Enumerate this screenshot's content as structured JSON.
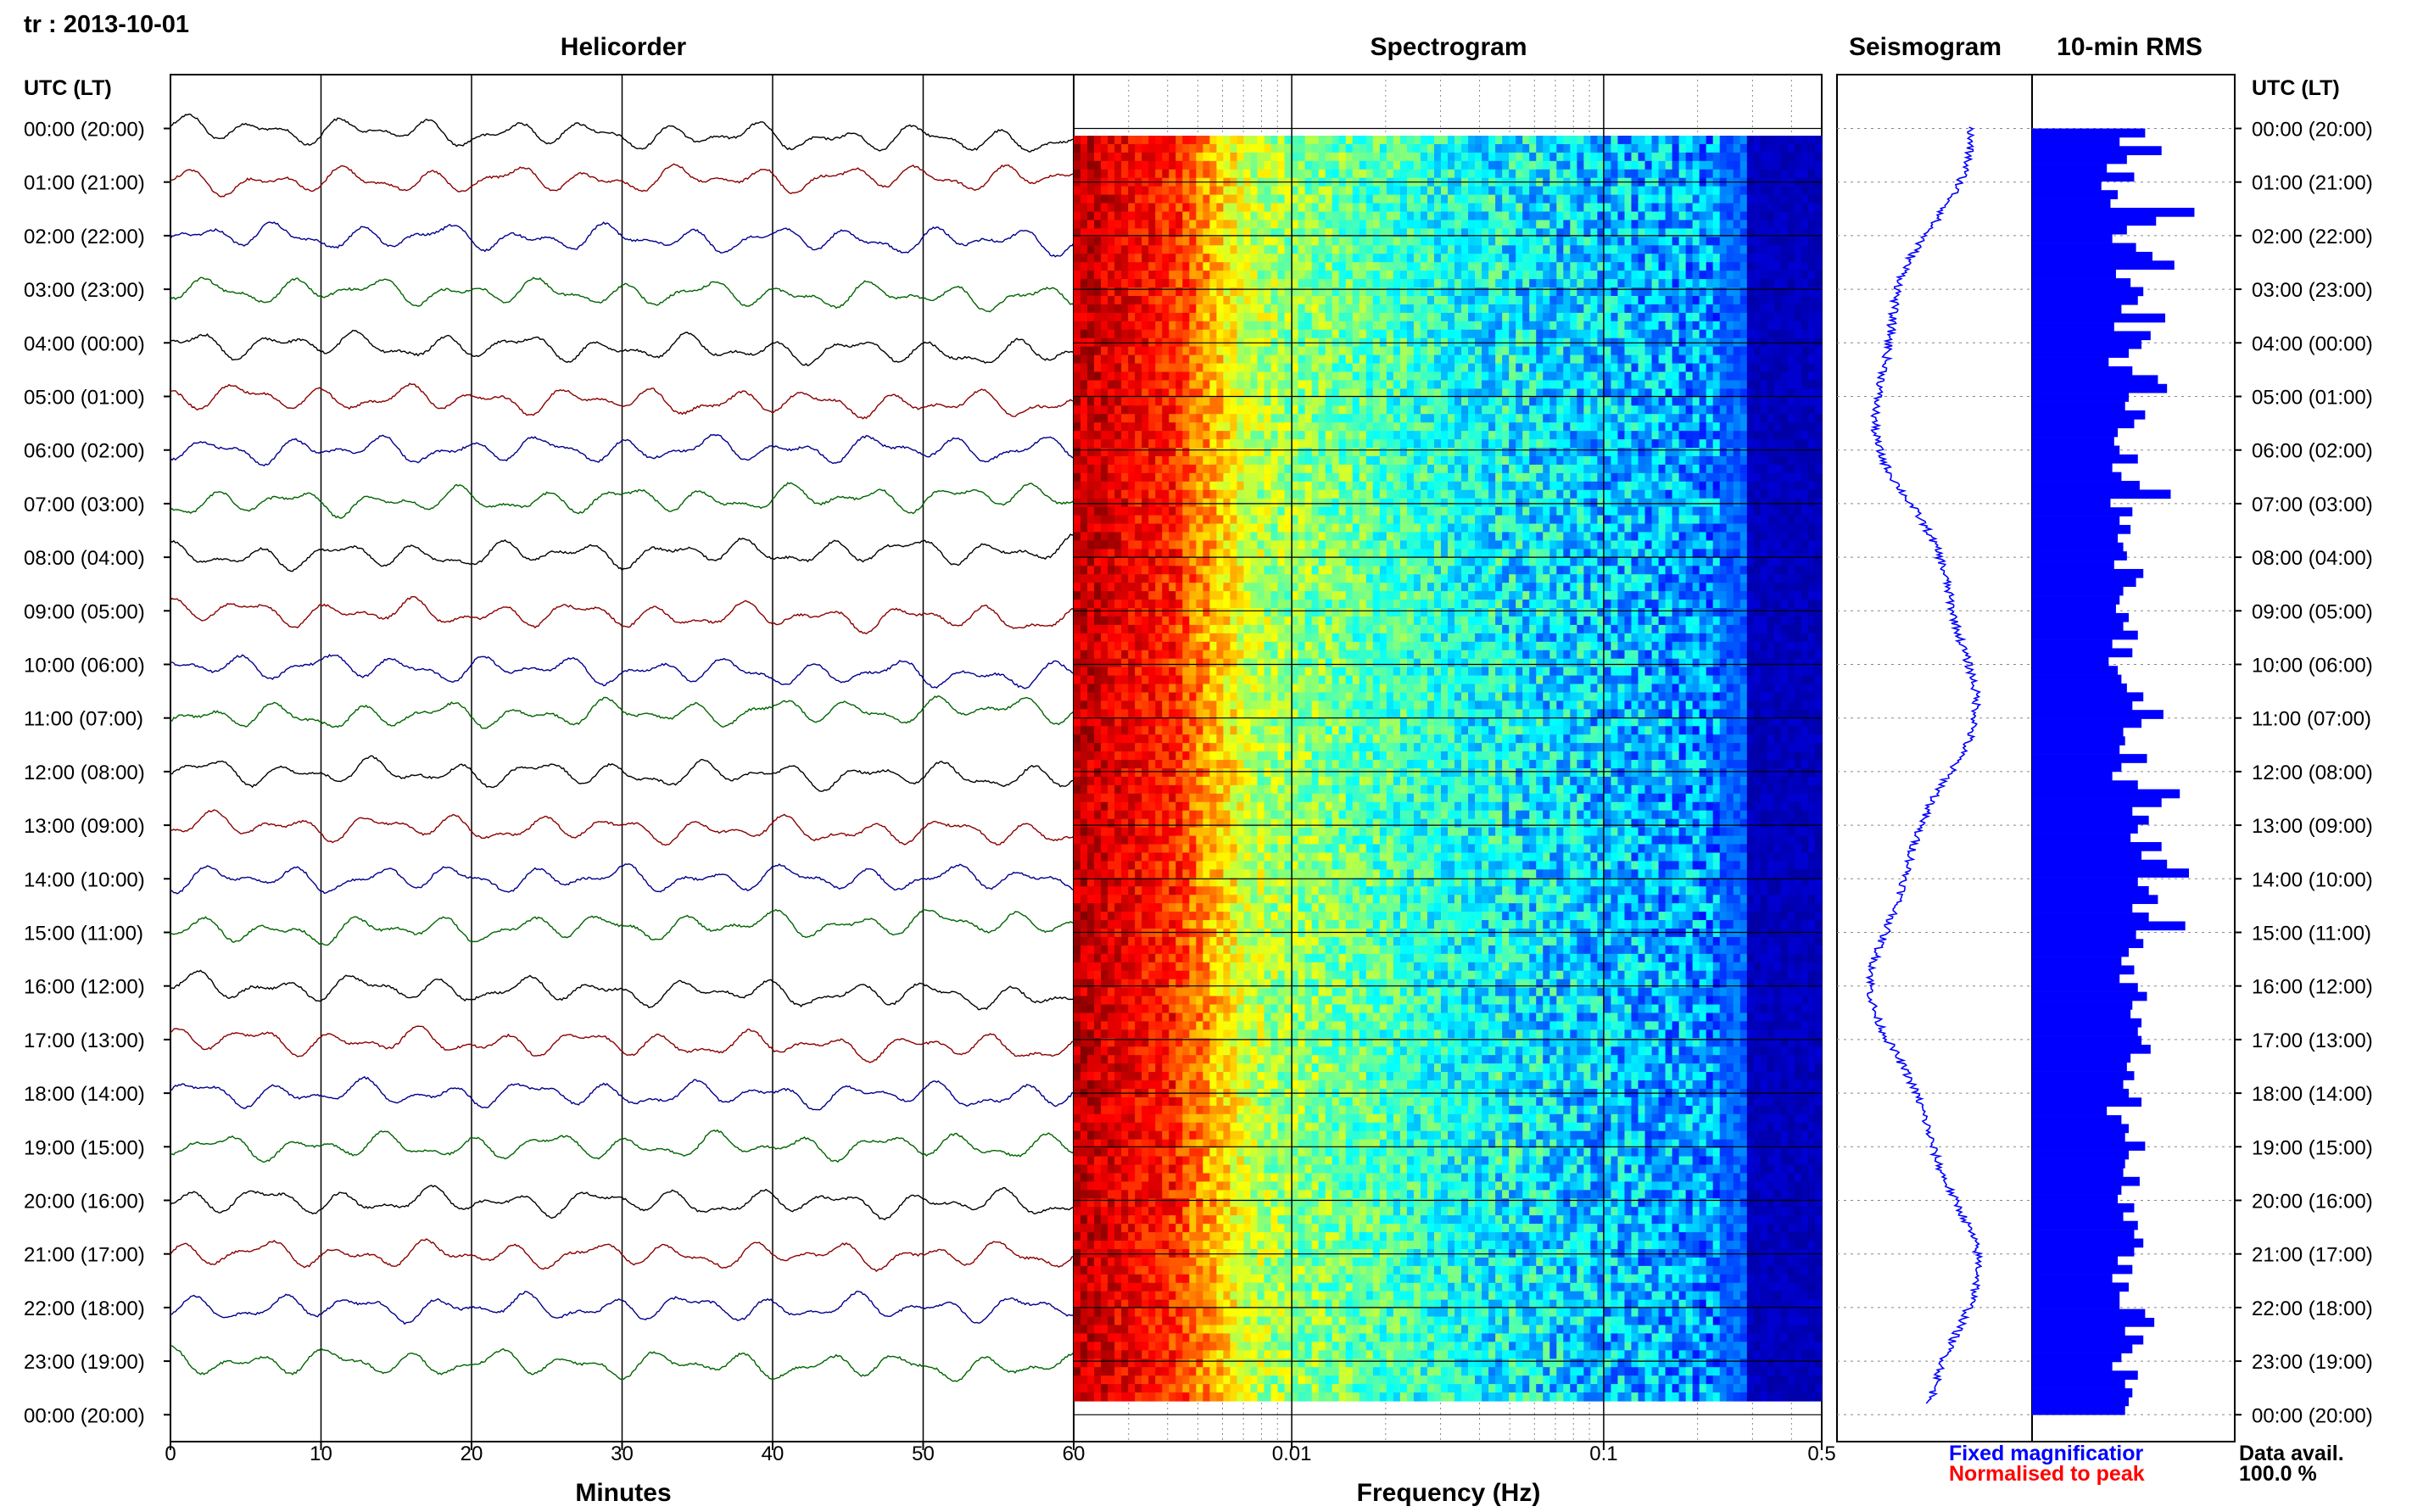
{
  "header": {
    "station_date": "tr : 2013-10-01",
    "time_axis_label_left": "UTC (LT)",
    "time_axis_label_right": "UTC (LT)"
  },
  "panels": {
    "helicorder": {
      "title": "Helicorder",
      "xlabel": "Minutes"
    },
    "spectrogram": {
      "title": "Spectrogram",
      "xlabel": "Frequency (Hz)"
    },
    "seismogram": {
      "title": "Seismogram"
    },
    "rms": {
      "title": "10-min RMS"
    }
  },
  "legend": {
    "fixed": "Fixed magnificatior",
    "normalised": "Normalised to peak",
    "fixed_color": "#0000ff",
    "normalised_color": "#ff0000"
  },
  "data_avail": {
    "label": "Data avail.",
    "value": "100.0 %"
  },
  "chart_data": [
    {
      "type": "line",
      "panel": "helicorder",
      "xlabel": "Minutes",
      "xlim": [
        0,
        60
      ],
      "x_ticks": [
        "0",
        "10",
        "20",
        "30",
        "40",
        "50",
        "60"
      ],
      "row_labels": [
        "00:00 (20:00)",
        "01:00 (21:00)",
        "02:00 (22:00)",
        "03:00 (23:00)",
        "04:00 (00:00)",
        "05:00 (01:00)",
        "06:00 (02:00)",
        "07:00 (03:00)",
        "08:00 (04:00)",
        "09:00 (05:00)",
        "10:00 (06:00)",
        "11:00 (07:00)",
        "12:00 (08:00)",
        "13:00 (09:00)",
        "14:00 (10:00)",
        "15:00 (11:00)",
        "16:00 (12:00)",
        "17:00 (13:00)",
        "18:00 (14:00)",
        "19:00 (15:00)",
        "20:00 (16:00)",
        "21:00 (17:00)",
        "22:00 (18:00)",
        "23:00 (19:00)",
        "00:00 (20:00)"
      ],
      "trace_colors": [
        "#000000",
        "#8b0000",
        "#00008b",
        "#006400"
      ]
    },
    {
      "type": "heatmap",
      "panel": "spectrogram",
      "xlabel": "Frequency (Hz)",
      "x_scale": "log",
      "xlim": [
        0.002,
        0.5
      ],
      "x_ticks": [
        "0.01",
        "0.1",
        "0.5"
      ],
      "colormap": "jet"
    },
    {
      "type": "line",
      "panel": "seismogram",
      "color": "#0000ff"
    },
    {
      "type": "bar",
      "panel": "10-min RMS",
      "orientation": "horizontal",
      "color": "#0000ff",
      "values": [
        0.62,
        0.48,
        0.71,
        0.52,
        0.41,
        0.56,
        0.38,
        0.47,
        0.43,
        0.89,
        0.68,
        0.52,
        0.44,
        0.57,
        0.66,
        0.78,
        0.46,
        0.54,
        0.61,
        0.58,
        0.49,
        0.73,
        0.45,
        0.65,
        0.6,
        0.53,
        0.42,
        0.55,
        0.69,
        0.74,
        0.53,
        0.51,
        0.62,
        0.56,
        0.47,
        0.45,
        0.48,
        0.58,
        0.44,
        0.49,
        0.59,
        0.76,
        0.43,
        0.55,
        0.48,
        0.54,
        0.47,
        0.5,
        0.52,
        0.45,
        0.61,
        0.57,
        0.5,
        0.48,
        0.46,
        0.53,
        0.5,
        0.58,
        0.44,
        0.55,
        0.42,
        0.47,
        0.49,
        0.52,
        0.61,
        0.55,
        0.72,
        0.6,
        0.5,
        0.51,
        0.48,
        0.63,
        0.49,
        0.44,
        0.58,
        0.81,
        0.71,
        0.55,
        0.64,
        0.58,
        0.54,
        0.71,
        0.6,
        0.74,
        0.86,
        0.58,
        0.64,
        0.69,
        0.55,
        0.64,
        0.84,
        0.57,
        0.61,
        0.53,
        0.49,
        0.56,
        0.48,
        0.58,
        0.63,
        0.55,
        0.54,
        0.6,
        0.58,
        0.6,
        0.65,
        0.54,
        0.52,
        0.56,
        0.5,
        0.53,
        0.6,
        0.41,
        0.49,
        0.53,
        0.51,
        0.62,
        0.53,
        0.51,
        0.5,
        0.59,
        0.49,
        0.47,
        0.56,
        0.5,
        0.58,
        0.56,
        0.61,
        0.56,
        0.47,
        0.55,
        0.44,
        0.53,
        0.48,
        0.48,
        0.62,
        0.67,
        0.51,
        0.61,
        0.55,
        0.49,
        0.44,
        0.58,
        0.51,
        0.55,
        0.53,
        0.51
      ]
    }
  ]
}
